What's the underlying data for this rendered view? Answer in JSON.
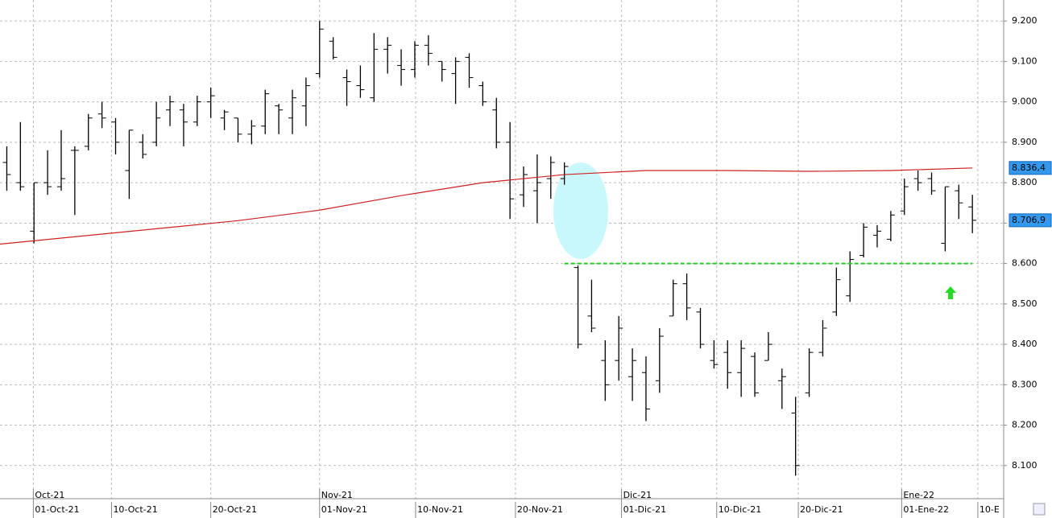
{
  "chart_data": {
    "type": "ohlc",
    "color": "#000000",
    "xlim": [
      -0.5,
      73.3
    ],
    "ylim": [
      8018,
      9252
    ],
    "grid": true,
    "yticks": [
      {
        "value": 8100,
        "label": "8.100"
      },
      {
        "value": 8200,
        "label": "8.200"
      },
      {
        "value": 8300,
        "label": "8.300"
      },
      {
        "value": 8400,
        "label": "8.400"
      },
      {
        "value": 8500,
        "label": "8.500"
      },
      {
        "value": 8600,
        "label": "8.600"
      },
      {
        "value": 8700,
        "label": "8.700"
      },
      {
        "value": 8800,
        "label": "8.800"
      },
      {
        "value": 8900,
        "label": "8.900"
      },
      {
        "value": 9000,
        "label": "9.000"
      },
      {
        "value": 9100,
        "label": "9.100"
      },
      {
        "value": 9200,
        "label": "9.200"
      }
    ],
    "xticks": [
      {
        "value": 1.95,
        "label": "01-Oct-21"
      },
      {
        "value": 7.7,
        "label": "10-Oct-21"
      },
      {
        "value": 15.0,
        "label": "20-Oct-21"
      },
      {
        "value": 23.0,
        "label": "01-Nov-21"
      },
      {
        "value": 30.06,
        "label": "10-Nov-21"
      },
      {
        "value": 37.4,
        "label": "20-Nov-21"
      },
      {
        "value": 45.2,
        "label": "01-Dic-21"
      },
      {
        "value": 52.2,
        "label": "10-Dic-21"
      },
      {
        "value": 58.2,
        "label": "20-Dic-21"
      },
      {
        "value": 65.8,
        "label": "01-Ene-22"
      },
      {
        "value": 71.4,
        "label": "10-E"
      }
    ],
    "month_ticks": [
      {
        "value": 1.95,
        "label": "Oct-21"
      },
      {
        "value": 23.0,
        "label": "Nov-21"
      },
      {
        "value": 45.2,
        "label": "Dic-21"
      },
      {
        "value": 65.8,
        "label": "Ene-22"
      }
    ],
    "open": [
      8850,
      8800,
      8680,
      8800,
      8790,
      8880,
      8890,
      8970,
      8950,
      8830,
      8900,
      8900,
      8980,
      8980,
      8950,
      9000,
      8960,
      8960,
      8920,
      8940,
      8990,
      8960,
      8990,
      9070,
      9150,
      9060,
      9040,
      9010,
      9130,
      9090,
      9080,
      9140,
      9100,
      9070,
      9110,
      9040,
      8980,
      8900,
      8770,
      8780,
      8810,
      8810,
      8590,
      8470,
      8360,
      8360,
      8320,
      8330,
      8310,
      8470,
      8550,
      8480,
      8360,
      8380,
      8330,
      8370,
      8360,
      8310,
      8230,
      8280,
      8380,
      8480,
      8520,
      8620,
      8670,
      8660,
      8730,
      8810,
      8810,
      8650,
      8780,
      8740
    ],
    "high": [
      8890,
      8950,
      8800,
      8880,
      8930,
      8890,
      8970,
      9000,
      8960,
      8930,
      8920,
      9000,
      9015,
      8995,
      9015,
      9035,
      8980,
      8960,
      8955,
      9030,
      8995,
      9030,
      9060,
      9200,
      9160,
      9080,
      9090,
      9170,
      9160,
      9130,
      9150,
      9165,
      9100,
      9110,
      9120,
      9050,
      9010,
      8950,
      8840,
      8870,
      8865,
      8850,
      8595,
      8560,
      8410,
      8470,
      8390,
      8370,
      8440,
      8560,
      8575,
      8490,
      8410,
      8410,
      8410,
      8380,
      8430,
      8340,
      8270,
      8390,
      8460,
      8590,
      8630,
      8700,
      8695,
      8730,
      8810,
      8830,
      8825,
      8790,
      8795,
      8770
    ],
    "low": [
      8780,
      8780,
      8650,
      8770,
      8780,
      8720,
      8880,
      8935,
      8870,
      8760,
      8860,
      8890,
      8940,
      8890,
      8940,
      8960,
      8930,
      8900,
      8895,
      8920,
      8920,
      8920,
      8940,
      9060,
      9105,
      8990,
      9010,
      9000,
      9070,
      9040,
      9060,
      9090,
      9050,
      8995,
      9035,
      8990,
      8885,
      8710,
      8740,
      8700,
      8760,
      8795,
      8390,
      8430,
      8260,
      8310,
      8260,
      8210,
      8280,
      8470,
      8460,
      8390,
      8340,
      8290,
      8270,
      8270,
      8360,
      8240,
      8075,
      8270,
      8370,
      8470,
      8505,
      8615,
      8640,
      8655,
      8720,
      8780,
      8770,
      8630,
      8710,
      8675
    ],
    "close": [
      8820,
      8790,
      8800,
      8790,
      8810,
      8880,
      8960,
      8960,
      8900,
      8930,
      8870,
      8960,
      9000,
      8950,
      9000,
      9015,
      8975,
      8920,
      8940,
      9020,
      8980,
      9010,
      9040,
      9180,
      9110,
      9050,
      9030,
      9130,
      9140,
      9080,
      9140,
      9120,
      9080,
      9100,
      9060,
      9000,
      8900,
      8760,
      8820,
      8800,
      8850,
      8840,
      8400,
      8440,
      8300,
      8440,
      8360,
      8240,
      8420,
      8550,
      8490,
      8400,
      8350,
      8330,
      8390,
      8280,
      8400,
      8320,
      8100,
      8380,
      8440,
      8560,
      8610,
      8690,
      8680,
      8720,
      8790,
      8800,
      8780,
      8790,
      8750,
      8706.9
    ],
    "ma": {
      "color": "#cc2222",
      "x": [
        -0.5,
        11,
        17,
        23,
        29,
        35,
        41,
        47,
        53,
        59,
        65,
        71
      ],
      "values": [
        8648,
        8686,
        8706,
        8732,
        8768,
        8800,
        8820,
        8830,
        8830,
        8828,
        8830,
        8836.4
      ]
    },
    "level": {
      "value": 8600,
      "from": 41,
      "to": 71,
      "color": "#22cc22"
    },
    "last_labels": [
      {
        "value": 8836.4,
        "label": "8.836,4"
      },
      {
        "value": 8706.9,
        "label": "8.706,9"
      }
    ]
  }
}
